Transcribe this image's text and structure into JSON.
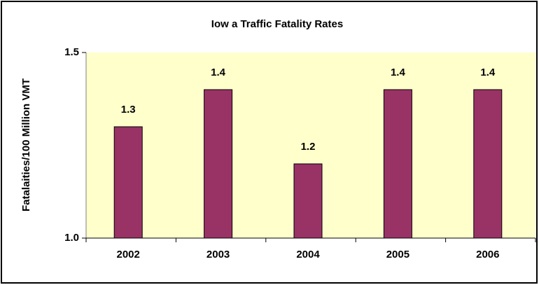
{
  "chart_data": {
    "type": "bar",
    "title": "Iow a Traffic Fatality Rates",
    "y_label": "Fatalaities/100 Million VMT",
    "categories": [
      "2002",
      "2003",
      "2004",
      "2005",
      "2006"
    ],
    "values": [
      1.3,
      1.4,
      1.2,
      1.4,
      1.4
    ],
    "color": "#993366",
    "background": "#ffffcc",
    "ylim": [
      1,
      1.5
    ],
    "yticks": [
      {
        "value": 1,
        "label": "1.0"
      },
      1.5
    ]
  }
}
